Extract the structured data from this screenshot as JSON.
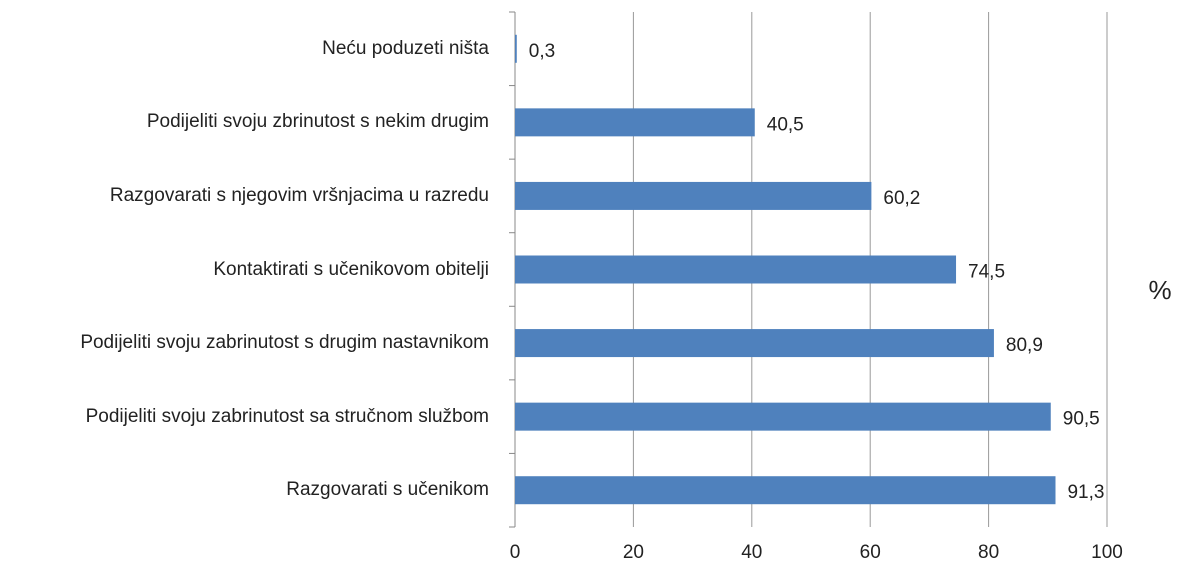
{
  "chart_data": {
    "type": "bar",
    "orientation": "horizontal",
    "categories": [
      "Neću poduzeti ništa",
      "Podijeliti svoju zbrinutost s nekim drugim",
      "Razgovarati s njegovim vršnjacima u razredu",
      "Kontaktirati s učenikovom obitelji",
      "Podijeliti svoju zabrinutost s drugim nastavnikom",
      "Podijeliti svoju zabrinutost sa stručnom službom",
      "Razgovarati s učenikom"
    ],
    "values": [
      0.3,
      40.5,
      60.2,
      74.5,
      80.9,
      90.5,
      91.3
    ],
    "value_labels": [
      "0,3",
      "40,5",
      "60,2",
      "74,5",
      "80,9",
      "90,5",
      "91,3"
    ],
    "color": "#4f81bd",
    "xlim": [
      0,
      100
    ],
    "xticks": [
      0,
      20,
      40,
      60,
      80,
      100
    ],
    "x_label": "%",
    "grid": true
  }
}
